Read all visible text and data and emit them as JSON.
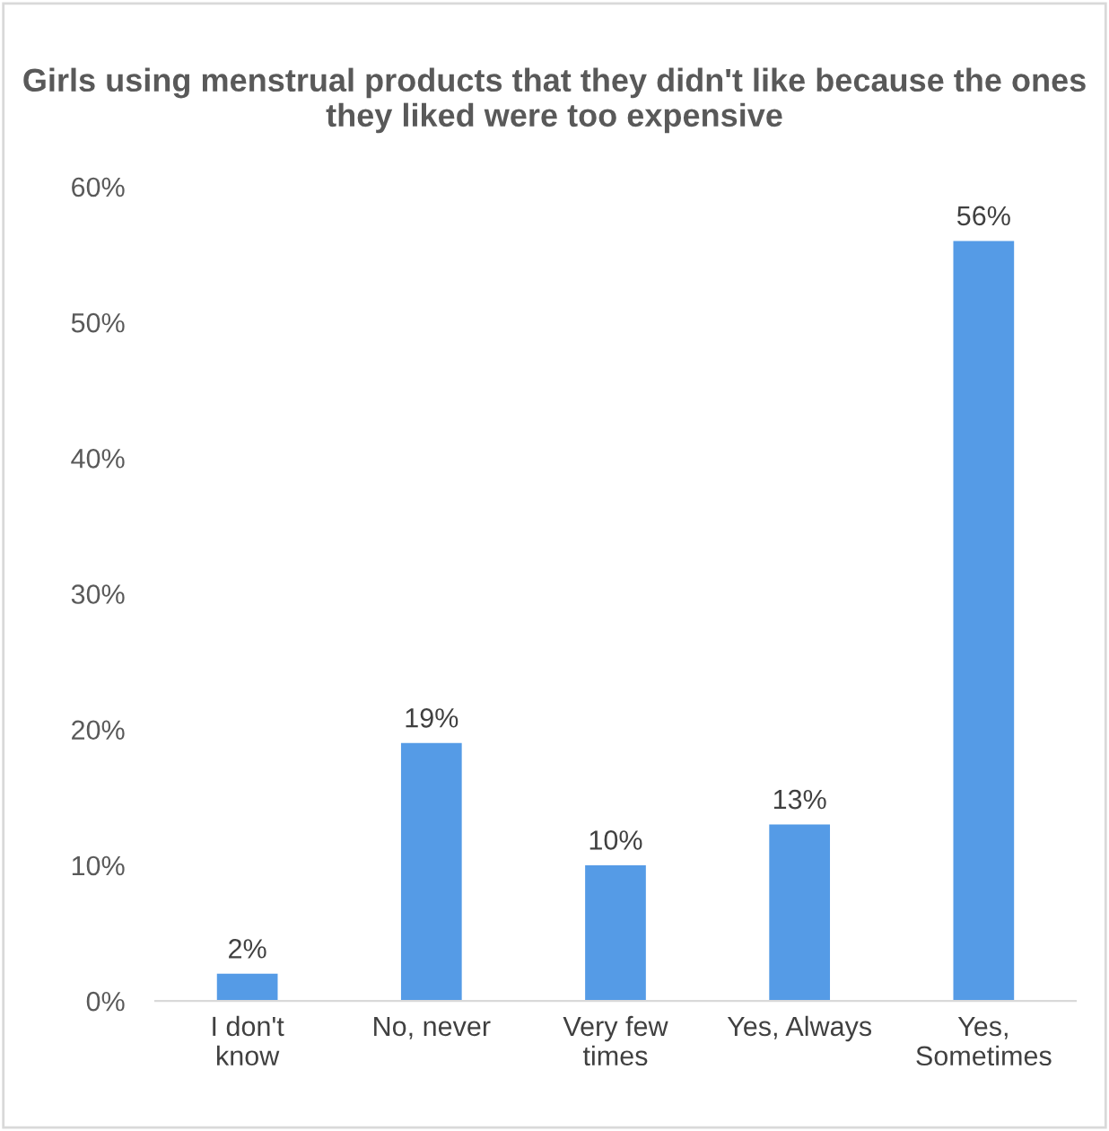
{
  "chart_data": {
    "type": "bar",
    "title": "Girls using menstrual products that they didn't like because the ones they liked were too expensive",
    "categories": [
      "I don't\nknow",
      "No, never",
      "Very few\ntimes",
      "Yes, Always",
      "Yes,\nSometimes"
    ],
    "values": [
      2,
      19,
      10,
      13,
      56
    ],
    "color": "#559be6",
    "value_labels": [
      "2%",
      "19%",
      "10%",
      "13%",
      "56%"
    ],
    "ylim": [
      0,
      60
    ],
    "yticks": [
      {
        "value": 0,
        "label": "0%"
      },
      {
        "value": 10,
        "label": "10%"
      },
      {
        "value": 20,
        "label": "20%"
      },
      {
        "value": 30,
        "label": "30%"
      },
      {
        "value": 40,
        "label": "40%"
      },
      {
        "value": 50,
        "label": "50%"
      },
      {
        "value": 60,
        "label": "60%"
      }
    ],
    "grid": false,
    "legend": false
  }
}
